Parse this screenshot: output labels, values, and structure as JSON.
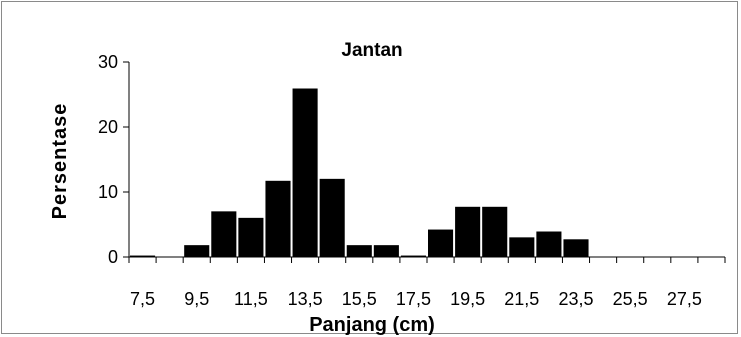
{
  "chart_data": {
    "type": "bar",
    "title": "Jantan",
    "xlabel": "Panjang (cm)",
    "ylabel": "Persentase",
    "ylim": [
      0,
      30
    ],
    "yticks": [
      "0",
      "10",
      "20",
      "30"
    ],
    "xtick_labels": [
      "7,5",
      "9,5",
      "11,5",
      "13,5",
      "15,5",
      "17,5",
      "19,5",
      "21,5",
      "23,5",
      "25,5",
      "27,5"
    ],
    "categories": [
      "7,5",
      "8,5",
      "9,5",
      "10,5",
      "11,5",
      "12,5",
      "13,5",
      "14,5",
      "15,5",
      "16,5",
      "17,5",
      "18,5",
      "19,5",
      "20,5",
      "21,5",
      "22,5",
      "23,5",
      "24,5",
      "25,5",
      "26,5",
      "27,5",
      "28,5"
    ],
    "values": [
      0.3,
      0,
      1.9,
      7.1,
      6.1,
      11.8,
      26.0,
      12.1,
      1.9,
      1.9,
      0.3,
      4.3,
      7.8,
      7.8,
      3.1,
      4.0,
      2.8,
      0,
      0,
      0,
      0,
      0
    ],
    "bar_color": "#000000",
    "grid": false,
    "legend": "none"
  }
}
